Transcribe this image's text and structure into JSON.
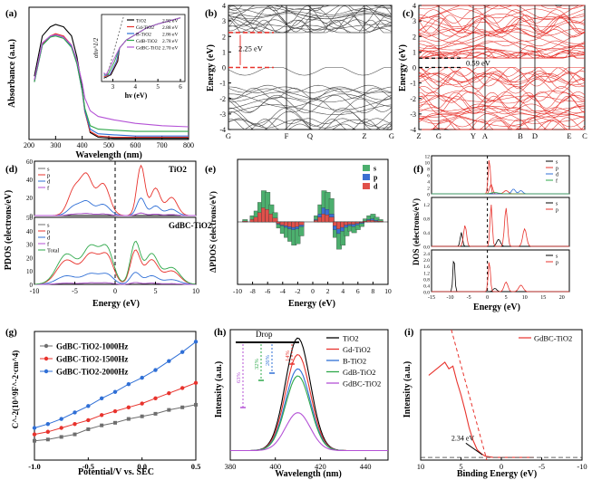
{
  "colors": {
    "black": "#000000",
    "red": "#e8332d",
    "green": "#2ea84a",
    "blue": "#2f6fd6",
    "magenta": "#b452d6",
    "gray": "#6e6e6e",
    "bar_s": "#4caf6e",
    "bar_p": "#3b6fd1",
    "bar_d": "#e0504a"
  },
  "chart_data": [
    {
      "panel": "(a)",
      "type": "line",
      "xlabel": "Wavelength (nm)",
      "ylabel": "Absorbance (a.u.)",
      "xlim": [
        200,
        800
      ],
      "xticks": [
        "200",
        "300",
        "400",
        "500",
        "600",
        "700",
        "800"
      ],
      "series": [
        {
          "name": "TiO2",
          "color": "#000000",
          "x": [
            220,
            250,
            280,
            300,
            330,
            360,
            380,
            400,
            410,
            430,
            460,
            520,
            600,
            700,
            800
          ],
          "y": [
            0.55,
            0.9,
            0.98,
            1.0,
            0.98,
            0.9,
            0.72,
            0.45,
            0.25,
            0.06,
            0.02,
            0.01,
            0.01,
            0.01,
            0.01
          ]
        },
        {
          "name": "Gd-TiO2",
          "color": "#e8332d",
          "x": [
            220,
            250,
            280,
            300,
            330,
            360,
            380,
            400,
            410,
            430,
            460,
            520,
            600,
            700,
            800
          ],
          "y": [
            0.5,
            0.83,
            0.9,
            0.92,
            0.9,
            0.82,
            0.67,
            0.42,
            0.24,
            0.07,
            0.03,
            0.02,
            0.02,
            0.02,
            0.02
          ]
        },
        {
          "name": "B-TiO2",
          "color": "#2f6fd6",
          "x": [
            220,
            250,
            280,
            300,
            330,
            360,
            380,
            400,
            410,
            430,
            460,
            520,
            600,
            700,
            800
          ],
          "y": [
            0.5,
            0.82,
            0.89,
            0.91,
            0.89,
            0.81,
            0.66,
            0.42,
            0.25,
            0.09,
            0.05,
            0.04,
            0.03,
            0.03,
            0.03
          ]
        },
        {
          "name": "GdB-TiO2",
          "color": "#2ea84a",
          "x": [
            220,
            250,
            280,
            300,
            330,
            360,
            380,
            400,
            410,
            430,
            460,
            520,
            600,
            700,
            800
          ],
          "y": [
            0.5,
            0.82,
            0.89,
            0.9,
            0.88,
            0.8,
            0.66,
            0.43,
            0.27,
            0.12,
            0.09,
            0.08,
            0.07,
            0.07,
            0.07
          ]
        },
        {
          "name": "GdBC-TiO2",
          "color": "#b452d6",
          "x": [
            220,
            250,
            280,
            300,
            330,
            360,
            380,
            400,
            410,
            430,
            460,
            520,
            600,
            700,
            800
          ],
          "y": [
            0.52,
            0.84,
            0.9,
            0.91,
            0.89,
            0.82,
            0.69,
            0.49,
            0.36,
            0.25,
            0.2,
            0.17,
            0.14,
            0.12,
            0.11
          ]
        }
      ],
      "inset": {
        "xlabel": "hν (eV)",
        "ylabel": "αhν^1/2",
        "xticks": [
          "3",
          "4",
          "5",
          "6"
        ],
        "legend": [
          {
            "name": "TiO2",
            "gap": "2.92 eV"
          },
          {
            "name": "Gd-TiO2",
            "gap": "2.88 eV"
          },
          {
            "name": "B-TiO2",
            "gap": "2.86 eV"
          },
          {
            "name": "GdB-TiO2",
            "gap": "2.78 eV"
          },
          {
            "name": "GdBC-TiO2",
            "gap": "2.70 eV"
          }
        ]
      }
    },
    {
      "panel": "(b)",
      "type": "line",
      "ylabel": "Energy (eV)",
      "ylim": [
        -4,
        4
      ],
      "yticks": [
        "-4",
        "-3",
        "-2",
        "-1",
        "0",
        "1",
        "2",
        "3",
        "4"
      ],
      "kpoints": [
        "G",
        "F",
        "Q",
        "Z",
        "G"
      ],
      "annotation": "2.25 eV",
      "band_gap_eV": 2.25
    },
    {
      "panel": "(c)",
      "type": "line",
      "ylabel": "Energy (eV)",
      "ylim": [
        -4,
        4
      ],
      "yticks": [
        "-4",
        "-3",
        "-2",
        "-1",
        "0",
        "1",
        "2",
        "3",
        "4"
      ],
      "kpoints": [
        "Z",
        "G",
        "Y",
        "A",
        "B",
        "D",
        "E",
        "C"
      ],
      "annotation": "0.59 eV",
      "band_gap_eV": 0.59
    },
    {
      "panel": "(d)",
      "type": "line",
      "xlabel": "Energy (eV)",
      "ylabel": "PDOS (electrons/eV)",
      "xlim": [
        -10,
        10
      ],
      "xticks": [
        "-10",
        "-5",
        "0",
        "5",
        "10"
      ],
      "top": {
        "label": "TiO2",
        "yticks": [
          "0",
          "20",
          "40",
          "60"
        ],
        "legend": [
          "s",
          "p",
          "d",
          "f"
        ]
      },
      "bottom": {
        "label": "GdBC-TiO2",
        "yticks": [
          "0",
          "10",
          "20",
          "30",
          "40",
          "50"
        ],
        "legend": [
          "s",
          "p",
          "d",
          "f",
          "Total"
        ]
      }
    },
    {
      "panel": "(e)",
      "type": "bar",
      "xlabel": "Energy (eV)",
      "ylabel": "ΔPDOS (electrons/eV)",
      "xlim": [
        -10,
        10
      ],
      "xticks": [
        "-10",
        "-8",
        "-6",
        "-4",
        "-2",
        "0",
        "2",
        "4",
        "6",
        "8",
        "10"
      ],
      "legend": [
        "s",
        "p",
        "d"
      ],
      "x": [
        -9,
        -8,
        -7.5,
        -7,
        -6.5,
        -6,
        -5.5,
        -5,
        -4.5,
        -4,
        -3.5,
        -3,
        -2.5,
        -2,
        -1.5,
        0.5,
        1,
        1.5,
        2,
        2.5,
        3,
        3.5,
        4,
        4.5,
        5,
        5.5,
        6,
        6.5,
        7,
        7.5,
        8,
        8.5,
        9
      ],
      "s": [
        3,
        8,
        14,
        25,
        40,
        38,
        22,
        12,
        -8,
        -15,
        -20,
        -25,
        -30,
        -28,
        -18,
        8,
        22,
        40,
        38,
        30,
        -20,
        -35,
        -30,
        -18,
        -12,
        -14,
        -10,
        -6,
        4,
        8,
        10,
        6,
        3
      ],
      "p": [
        1,
        2,
        4,
        8,
        12,
        10,
        6,
        3,
        -3,
        -5,
        -7,
        -9,
        -10,
        -9,
        -6,
        3,
        10,
        18,
        16,
        10,
        -10,
        -15,
        -12,
        -7,
        -5,
        -6,
        -4,
        -2,
        1,
        3,
        4,
        2,
        1
      ],
      "d": [
        1,
        3,
        6,
        12,
        18,
        16,
        10,
        5,
        -2,
        -4,
        -5,
        -6,
        -7,
        -6,
        -4,
        2,
        6,
        10,
        9,
        6,
        -5,
        -9,
        -7,
        -4,
        -3,
        -3,
        -2,
        -1,
        1,
        2,
        2,
        1,
        1
      ]
    },
    {
      "panel": "(f)",
      "type": "line",
      "xlabel": "Energy (eV)",
      "ylabel": "DOS (electrons/eV)",
      "xticks": [
        "-15",
        "-10",
        "-5",
        "0",
        "5",
        "10",
        "15",
        "20"
      ],
      "subpanels": [
        {
          "yticks": [
            "0",
            "2",
            "4",
            "6",
            "8",
            "10",
            "12"
          ],
          "legend": [
            "s",
            "p",
            "d",
            "f"
          ]
        },
        {
          "yticks": [
            "0.0",
            "0.4",
            "0.8",
            "1.2"
          ],
          "legend": [
            "s",
            "p"
          ]
        },
        {
          "yticks": [
            "0.0",
            "0.4",
            "0.8",
            "1.2",
            "1.6",
            "2.0",
            "2.4"
          ],
          "legend": [
            "s",
            "p"
          ]
        }
      ]
    },
    {
      "panel": "(g)",
      "type": "line",
      "xlabel": "Potential/V vs. SEC",
      "ylabel": "C^-2(10^9F^-2·cm^4)",
      "xlim": [
        -1.0,
        0.5
      ],
      "xticks": [
        "-1.0",
        "-0.5",
        "0.0",
        "0.5"
      ],
      "series": [
        {
          "name": "GdBC-TiO2-1000Hz",
          "color": "#6e6e6e",
          "x": [
            -1.0,
            -0.875,
            -0.75,
            -0.625,
            -0.5,
            -0.375,
            -0.25,
            -0.125,
            0.0,
            0.125,
            0.25,
            0.375,
            0.5
          ],
          "y": [
            0.15,
            0.16,
            0.18,
            0.2,
            0.24,
            0.27,
            0.29,
            0.32,
            0.34,
            0.36,
            0.39,
            0.41,
            0.43
          ]
        },
        {
          "name": "GdBC-TiO2-1500Hz",
          "color": "#e8332d",
          "x": [
            -1.0,
            -0.875,
            -0.75,
            -0.625,
            -0.5,
            -0.375,
            -0.25,
            -0.125,
            0.0,
            0.125,
            0.25,
            0.375,
            0.5
          ],
          "y": [
            0.2,
            0.22,
            0.25,
            0.28,
            0.31,
            0.35,
            0.38,
            0.41,
            0.44,
            0.48,
            0.52,
            0.56,
            0.6
          ]
        },
        {
          "name": "GdBC-TiO2-2000Hz",
          "color": "#2f6fd6",
          "x": [
            -1.0,
            -0.875,
            -0.75,
            -0.625,
            -0.5,
            -0.375,
            -0.25,
            -0.125,
            0.0,
            0.125,
            0.25,
            0.375,
            0.5
          ],
          "y": [
            0.25,
            0.28,
            0.32,
            0.37,
            0.42,
            0.48,
            0.53,
            0.59,
            0.64,
            0.7,
            0.77,
            0.84,
            0.92
          ]
        }
      ]
    },
    {
      "panel": "(h)",
      "type": "line",
      "xlabel": "Wavelength (nm)",
      "ylabel": "Intensity (a.u.)",
      "xlim": [
        380,
        450
      ],
      "xticks": [
        "380",
        "400",
        "420",
        "440"
      ],
      "peak_nm": 410,
      "series": [
        {
          "name": "TiO2",
          "color": "#000000",
          "peak": 1.0
        },
        {
          "name": "Gd-TiO2",
          "color": "#e8332d",
          "peak": 0.86
        },
        {
          "name": "B-TiO2",
          "color": "#2f6fd6",
          "peak": 0.74
        },
        {
          "name": "GdB-TiO2",
          "color": "#2ea84a",
          "peak": 0.68
        },
        {
          "name": "GdBC-TiO2",
          "color": "#b452d6",
          "peak": 0.37
        }
      ],
      "drop_label": "Drop",
      "drops": [
        "14%",
        "26%",
        "32%",
        "63%"
      ]
    },
    {
      "panel": "(i)",
      "type": "line",
      "xlabel": "Binding Energy (eV)",
      "ylabel": "Intensity (a.u.)",
      "xlim": [
        10,
        -10
      ],
      "xticks": [
        "10",
        "5",
        "0",
        "-5",
        "-10"
      ],
      "series": [
        {
          "name": "GdBC-TiO2",
          "color": "#e8332d",
          "x": [
            9,
            8,
            7,
            6.5,
            6,
            5.5,
            5,
            4.5,
            4,
            3.5,
            3,
            2.5,
            2,
            1,
            0,
            -1,
            -2,
            -3,
            -4
          ],
          "y": [
            0.65,
            0.7,
            0.75,
            0.7,
            0.72,
            0.6,
            0.5,
            0.38,
            0.25,
            0.15,
            0.08,
            0.05,
            0.03,
            0.02,
            0.02,
            0.02,
            0.02,
            0.02,
            0.02
          ]
        }
      ],
      "annotation": "2.34 eV",
      "vbm_eV": 2.34
    }
  ]
}
